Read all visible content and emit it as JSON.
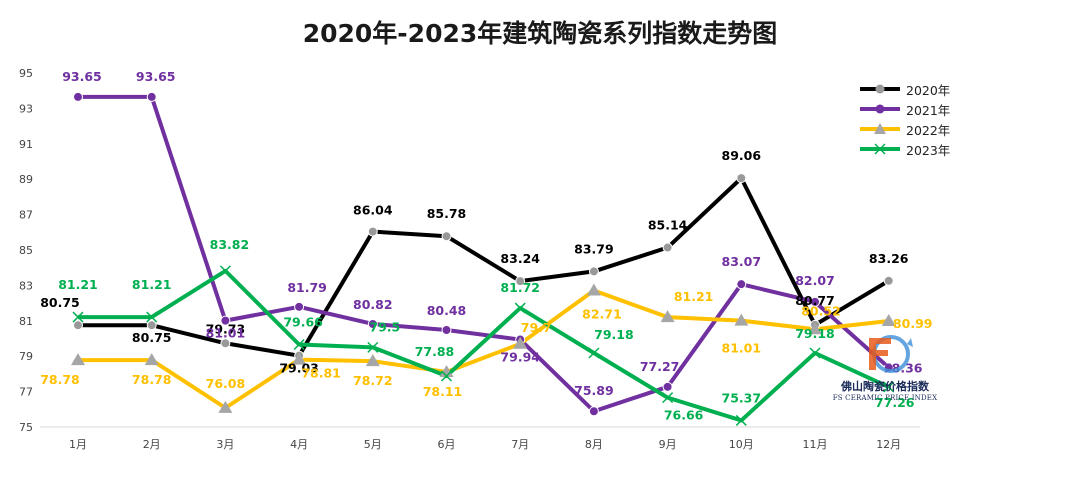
{
  "chart_data": {
    "type": "line",
    "title": "2020年-2023年建筑陶瓷系列指数走势图",
    "xlabel": "",
    "ylabel": "",
    "categories": [
      "1月",
      "2月",
      "3月",
      "4月",
      "5月",
      "6月",
      "7月",
      "8月",
      "9月",
      "10月",
      "11月",
      "12月"
    ],
    "y_ticks": [
      75,
      77,
      79,
      81,
      83,
      85,
      87,
      89,
      91,
      93,
      95
    ],
    "ylim": [
      75,
      95
    ],
    "grid": false,
    "legend_position": "top-right",
    "series": [
      {
        "name": "2020年",
        "color": "#000000",
        "marker": "circle",
        "marker_color": "#999999",
        "values": [
          80.75,
          80.75,
          79.73,
          79.03,
          86.04,
          85.78,
          83.24,
          83.79,
          85.14,
          89.06,
          80.77,
          83.26
        ]
      },
      {
        "name": "2021年",
        "color": "#7030A0",
        "marker": "circle",
        "marker_color": "#7030A0",
        "values": [
          93.65,
          93.65,
          81.01,
          81.79,
          80.82,
          80.48,
          79.94,
          75.89,
          77.27,
          83.07,
          82.07,
          78.36
        ]
      },
      {
        "name": "2022年",
        "color": "#FFC000",
        "marker": "triangle",
        "marker_color": "#A6A6A6",
        "values": [
          78.78,
          78.78,
          76.08,
          78.81,
          78.72,
          78.11,
          79.7,
          82.71,
          81.21,
          81.01,
          80.52,
          80.99
        ]
      },
      {
        "name": "2023年",
        "color": "#00B050",
        "marker": "x",
        "marker_color": "#00B050",
        "values": [
          81.21,
          81.21,
          83.82,
          79.66,
          79.5,
          77.88,
          81.72,
          79.18,
          76.66,
          75.37,
          79.18,
          77.26
        ]
      }
    ]
  },
  "watermark": {
    "text_cn": "佛山陶瓷价格指数",
    "text_en": "FS CERAMIC PRICE INDEX"
  }
}
